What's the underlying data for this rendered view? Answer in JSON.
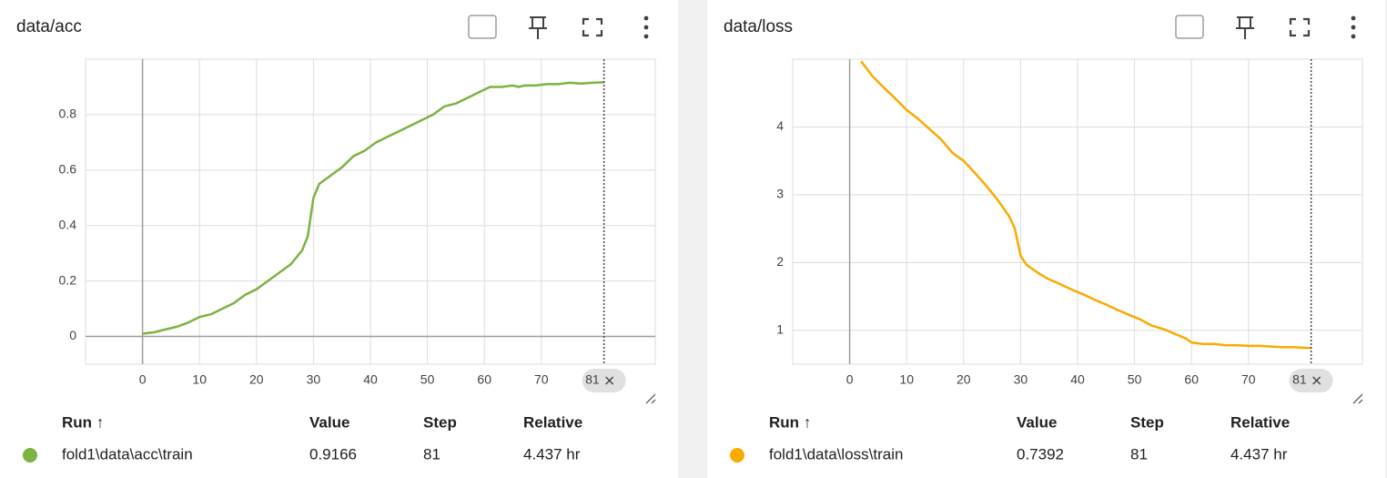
{
  "chart_data": [
    {
      "type": "line",
      "title": "data/acc",
      "x": [
        0,
        2,
        4,
        6,
        8,
        10,
        12,
        14,
        16,
        18,
        20,
        22,
        24,
        26,
        28,
        29,
        30,
        31,
        33,
        35,
        37,
        39,
        41,
        43,
        45,
        47,
        49,
        51,
        53,
        55,
        57,
        59,
        61,
        63,
        65,
        66,
        67,
        69,
        71,
        73,
        75,
        77,
        79,
        81
      ],
      "series": [
        {
          "color": "#7cb342",
          "values": [
            0.01,
            0.015,
            0.025,
            0.035,
            0.05,
            0.07,
            0.08,
            0.1,
            0.12,
            0.15,
            0.17,
            0.2,
            0.23,
            0.26,
            0.31,
            0.36,
            0.5,
            0.55,
            0.58,
            0.61,
            0.65,
            0.67,
            0.7,
            0.72,
            0.74,
            0.76,
            0.78,
            0.8,
            0.83,
            0.84,
            0.86,
            0.88,
            0.9,
            0.9,
            0.905,
            0.9,
            0.905,
            0.905,
            0.91,
            0.91,
            0.915,
            0.912,
            0.915,
            0.9166
          ]
        }
      ],
      "xlim": [
        -10,
        90
      ],
      "ylim": [
        -0.1,
        1.0
      ],
      "xticks": [
        0,
        10,
        20,
        30,
        40,
        50,
        60,
        70
      ],
      "yticks": [
        0,
        0.2,
        0.4,
        0.6,
        0.8
      ],
      "grid": true,
      "cursor_step": 81
    },
    {
      "type": "line",
      "title": "data/loss",
      "x": [
        2,
        4,
        6,
        8,
        10,
        12,
        14,
        16,
        18,
        20,
        22,
        24,
        26,
        28,
        29,
        30,
        31,
        33,
        35,
        37,
        39,
        41,
        43,
        45,
        47,
        49,
        51,
        53,
        55,
        57,
        59,
        60,
        62,
        64,
        66,
        68,
        70,
        72,
        74,
        76,
        78,
        80,
        81
      ],
      "series": [
        {
          "color": "#f9ab00",
          "values": [
            4.97,
            4.75,
            4.58,
            4.42,
            4.25,
            4.12,
            3.97,
            3.82,
            3.62,
            3.5,
            3.32,
            3.13,
            2.92,
            2.68,
            2.5,
            2.1,
            1.97,
            1.85,
            1.75,
            1.68,
            1.6,
            1.53,
            1.45,
            1.38,
            1.3,
            1.23,
            1.16,
            1.07,
            1.02,
            0.95,
            0.88,
            0.82,
            0.8,
            0.8,
            0.78,
            0.78,
            0.77,
            0.77,
            0.76,
            0.75,
            0.75,
            0.74,
            0.7392
          ]
        }
      ],
      "xlim": [
        -10,
        90
      ],
      "ylim": [
        0.5,
        5
      ],
      "xticks": [
        0,
        10,
        20,
        30,
        40,
        50,
        60,
        70
      ],
      "yticks": [
        1,
        2,
        3,
        4
      ],
      "grid": true,
      "cursor_step": 81
    }
  ],
  "tables": [
    {
      "headers": [
        "Run ↑",
        "Value",
        "Step",
        "Relative"
      ],
      "rows": [
        [
          "fold1\\data\\acc\\train",
          "0.9166",
          "81",
          "4.437 hr"
        ]
      ]
    },
    {
      "headers": [
        "Run ↑",
        "Value",
        "Step",
        "Relative"
      ],
      "rows": [
        [
          "fold1\\data\\loss\\train",
          "0.7392",
          "81",
          "4.437 hr"
        ]
      ]
    }
  ]
}
